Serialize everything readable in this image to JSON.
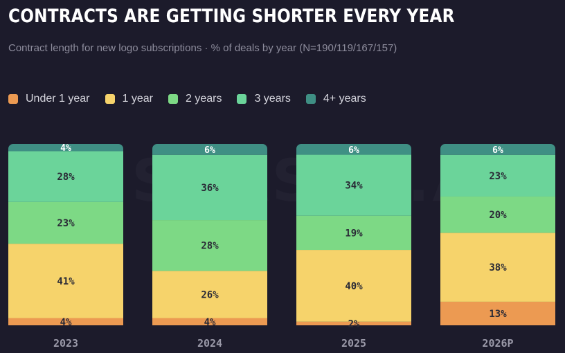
{
  "title": "CONTRACTS ARE GETTING SHORTER EVERY YEAR",
  "subtitle": "Contract length for new logo subscriptions · % of deals by year (N=190/119/167/157)",
  "watermark": "SAASTR.AI",
  "legend": [
    {
      "label": "Under 1 year",
      "color": "#ec9a52"
    },
    {
      "label": "1 year",
      "color": "#f6d36b"
    },
    {
      "label": "2 years",
      "color": "#7dd985"
    },
    {
      "label": "3 years",
      "color": "#6bd49a"
    },
    {
      "label": "4+ years",
      "color": "#3f8f84"
    }
  ],
  "chart_data": {
    "type": "bar",
    "stacked": true,
    "categories": [
      "2023",
      "2024",
      "2025",
      "2026P"
    ],
    "series": [
      {
        "name": "Under 1 year",
        "values": [
          4,
          4,
          2,
          13
        ],
        "color": "#ec9a52"
      },
      {
        "name": "1 year",
        "values": [
          41,
          26,
          40,
          38
        ],
        "color": "#f6d36b"
      },
      {
        "name": "2 years",
        "values": [
          23,
          28,
          19,
          20
        ],
        "color": "#7dd985"
      },
      {
        "name": "3 years",
        "values": [
          28,
          36,
          34,
          23
        ],
        "color": "#6bd49a"
      },
      {
        "name": "4+ years",
        "values": [
          4,
          6,
          6,
          6
        ],
        "color": "#3f8f84"
      }
    ],
    "value_suffix": "%",
    "ylim": [
      0,
      100
    ],
    "legend_position": "top-left",
    "grid": false
  }
}
